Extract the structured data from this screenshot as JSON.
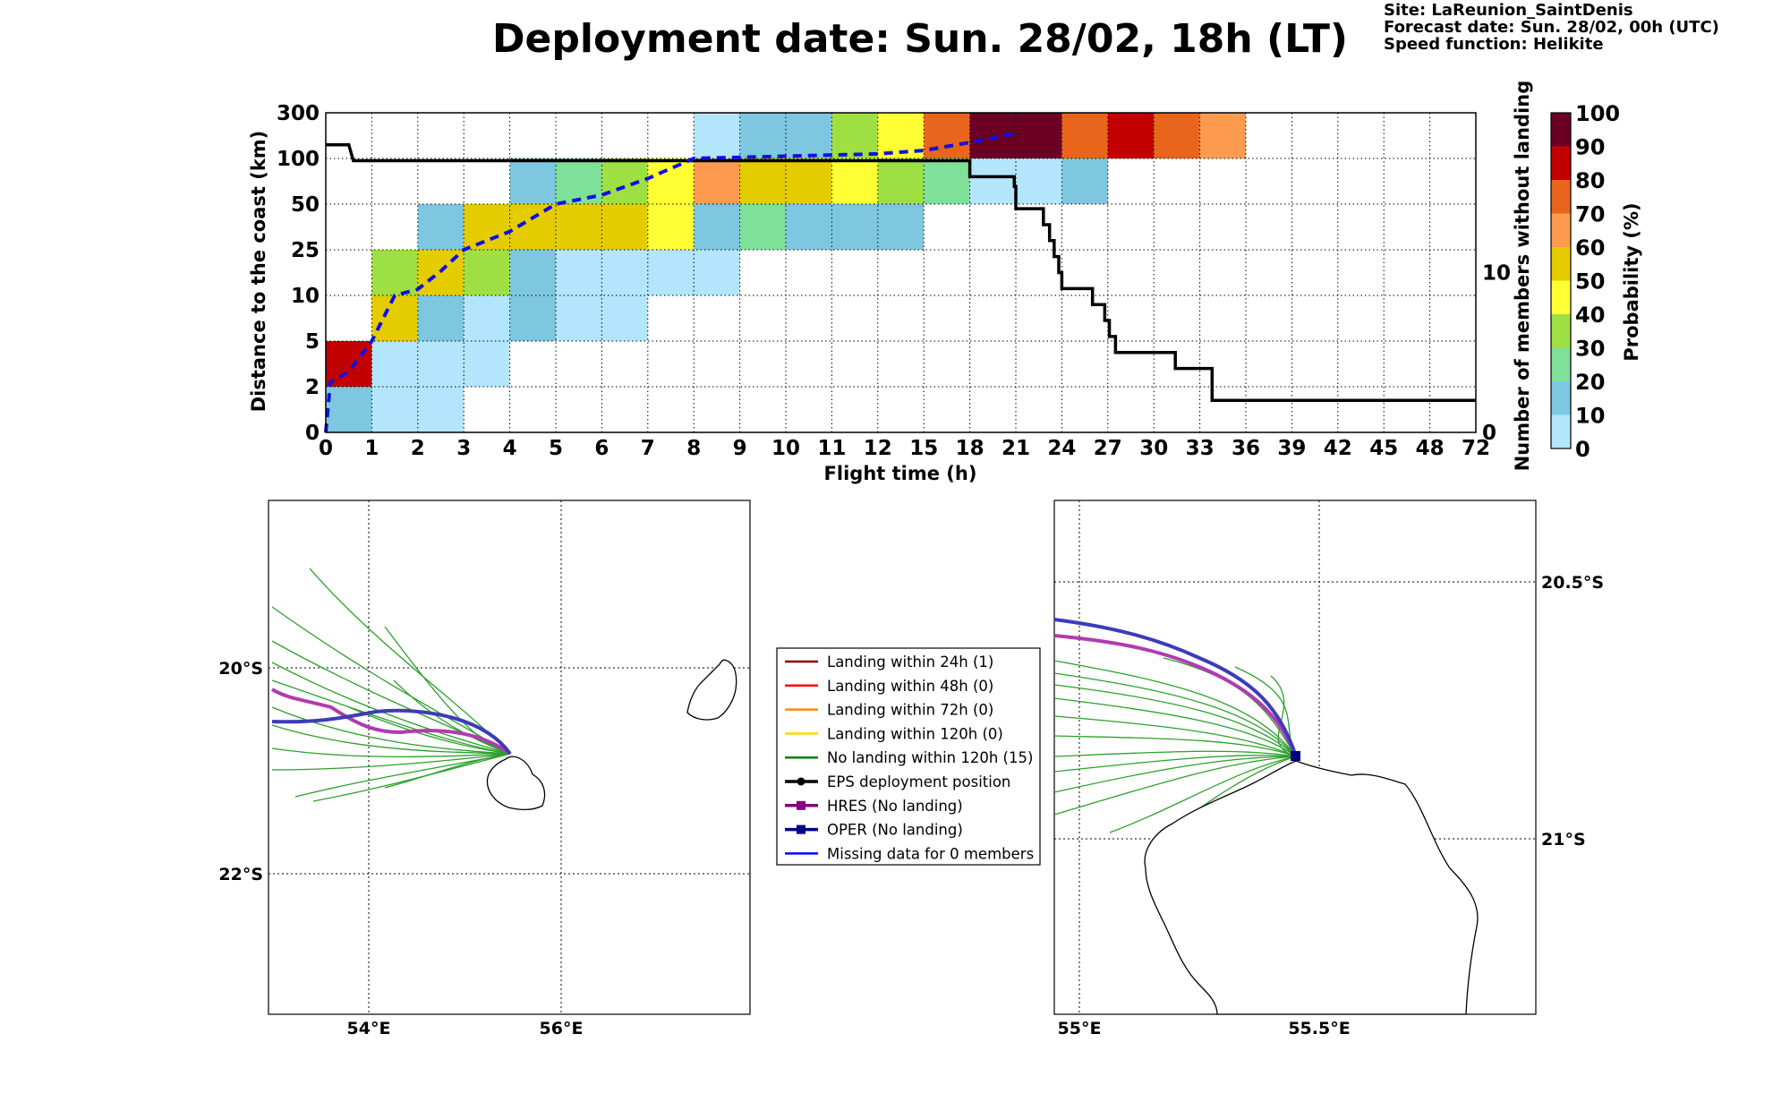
{
  "title": "Deployment date: Sun. 28/02, 18h (LT)",
  "meta": {
    "site": "Site: LaReunion_SaintDenis",
    "forecast": "Forecast date: Sun. 28/02, 00h (UTC)",
    "speed": "Speed function: Helikite"
  },
  "chart_data": [
    {
      "type": "heatmap",
      "xlabel": "Flight time (h)",
      "ylabel": "Distance to the coast (km)",
      "y2label": "Number of members without landing",
      "x_ticks": [
        "0",
        "1",
        "2",
        "3",
        "4",
        "5",
        "6",
        "7",
        "8",
        "9",
        "10",
        "11",
        "12",
        "15",
        "18",
        "21",
        "24",
        "27",
        "30",
        "33",
        "36",
        "39",
        "42",
        "45",
        "48",
        "72"
      ],
      "y_ticks": [
        "0",
        "2",
        "5",
        "10",
        "25",
        "50",
        "100",
        "300"
      ],
      "y2_ticks": [
        "0",
        "10"
      ],
      "y2lim": [
        0,
        20
      ],
      "colorbar": {
        "label": "Probability (%)",
        "ticks": [
          "0",
          "10",
          "20",
          "30",
          "40",
          "50",
          "60",
          "70",
          "80",
          "90",
          "100"
        ],
        "colors": [
          "#b3e5fc",
          "#7ec7e1",
          "#7fe09a",
          "#9ee042",
          "#ffff33",
          "#e5cc00",
          "#ff9b4f",
          "#e8651b",
          "#c30000",
          "#6b0024"
        ]
      },
      "cells": [
        {
          "x": "0-1",
          "y": "0-2",
          "p": 15
        },
        {
          "x": "1-3",
          "y": "0-2",
          "p": 5
        },
        {
          "x": "0-1",
          "y": "2-5",
          "p": 85
        },
        {
          "x": "1-4",
          "y": "2-5",
          "p": 5
        },
        {
          "x": "1-2",
          "y": "5-10",
          "p": 55
        },
        {
          "x": "2-3",
          "y": "5-10",
          "p": 15
        },
        {
          "x": "3-4",
          "y": "5-10",
          "p": 5
        },
        {
          "x": "4-5",
          "y": "5-10",
          "p": 15
        },
        {
          "x": "5-7",
          "y": "5-10",
          "p": 5
        },
        {
          "x": "1-2",
          "y": "10-25",
          "p": 35
        },
        {
          "x": "2-3",
          "y": "10-25",
          "p": 55
        },
        {
          "x": "3-4",
          "y": "10-25",
          "p": 35
        },
        {
          "x": "4-5",
          "y": "10-25",
          "p": 15
        },
        {
          "x": "5-9",
          "y": "10-25",
          "p": 5
        },
        {
          "x": "2-3",
          "y": "25-50",
          "p": 15
        },
        {
          "x": "3-7",
          "y": "25-50",
          "p": 55
        },
        {
          "x": "7-8",
          "y": "25-50",
          "p": 45
        },
        {
          "x": "8-9",
          "y": "25-50",
          "p": 15
        },
        {
          "x": "9-10",
          "y": "25-50",
          "p": 25
        },
        {
          "x": "10-15",
          "y": "25-50",
          "p": 15
        },
        {
          "x": "4-5",
          "y": "50-100",
          "p": 15
        },
        {
          "x": "5-6",
          "y": "50-100",
          "p": 25
        },
        {
          "x": "6-7",
          "y": "50-100",
          "p": 35
        },
        {
          "x": "7-8",
          "y": "50-100",
          "p": 45
        },
        {
          "x": "8-9",
          "y": "50-100",
          "p": 65
        },
        {
          "x": "9-11",
          "y": "50-100",
          "p": 55
        },
        {
          "x": "11-12",
          "y": "50-100",
          "p": 45
        },
        {
          "x": "12-15",
          "y": "50-100",
          "p": 35
        },
        {
          "x": "15-18",
          "y": "50-100",
          "p": 25
        },
        {
          "x": "18-24",
          "y": "50-100",
          "p": 5
        },
        {
          "x": "24-27",
          "y": "50-100",
          "p": 15
        },
        {
          "x": "8-9",
          "y": "100-300",
          "p": 5
        },
        {
          "x": "9-11",
          "y": "100-300",
          "p": 15
        },
        {
          "x": "11-12",
          "y": "100-300",
          "p": 35
        },
        {
          "x": "12-15",
          "y": "100-300",
          "p": 45
        },
        {
          "x": "15-18",
          "y": "100-300",
          "p": 75
        },
        {
          "x": "18-24",
          "y": "100-300",
          "p": 95
        },
        {
          "x": "24-27",
          "y": "100-300",
          "p": 75
        },
        {
          "x": "27-30",
          "y": "100-300",
          "p": 85
        },
        {
          "x": "30-33",
          "y": "100-300",
          "p": 75
        },
        {
          "x": "33-36",
          "y": "100-300",
          "p": 65
        }
      ],
      "mean_distance_dashed": [
        {
          "t": 0,
          "d": 0
        },
        {
          "t": 0.1,
          "d": 2.3
        },
        {
          "t": 0.5,
          "d": 3
        },
        {
          "t": 1,
          "d": 5
        },
        {
          "t": 1.2,
          "d": 7
        },
        {
          "t": 1.5,
          "d": 10
        },
        {
          "t": 2,
          "d": 12
        },
        {
          "t": 2.5,
          "d": 18
        },
        {
          "t": 3,
          "d": 25
        },
        {
          "t": 4,
          "d": 35
        },
        {
          "t": 5,
          "d": 50
        },
        {
          "t": 6,
          "d": 60
        },
        {
          "t": 7,
          "d": 78
        },
        {
          "t": 8,
          "d": 100
        },
        {
          "t": 9,
          "d": 105
        },
        {
          "t": 10,
          "d": 110
        },
        {
          "t": 11,
          "d": 115
        },
        {
          "t": 12,
          "d": 120
        },
        {
          "t": 15,
          "d": 135
        },
        {
          "t": 18,
          "d": 170
        },
        {
          "t": 21,
          "d": 210
        }
      ],
      "members_without_landing": [
        {
          "t": 0,
          "n": 18
        },
        {
          "t": 0.5,
          "n": 18
        },
        {
          "t": 0.6,
          "n": 17
        },
        {
          "t": 18,
          "n": 17
        },
        {
          "t": 18,
          "n": 16
        },
        {
          "t": 20.9,
          "n": 16
        },
        {
          "t": 20.9,
          "n": 15.4
        },
        {
          "t": 21,
          "n": 15.4
        },
        {
          "t": 21,
          "n": 14
        },
        {
          "t": 22.8,
          "n": 14
        },
        {
          "t": 22.8,
          "n": 13
        },
        {
          "t": 23.2,
          "n": 13
        },
        {
          "t": 23.2,
          "n": 12
        },
        {
          "t": 23.5,
          "n": 12
        },
        {
          "t": 23.5,
          "n": 11
        },
        {
          "t": 23.8,
          "n": 11
        },
        {
          "t": 23.8,
          "n": 10
        },
        {
          "t": 24,
          "n": 10
        },
        {
          "t": 24,
          "n": 9
        },
        {
          "t": 26,
          "n": 9
        },
        {
          "t": 26,
          "n": 8
        },
        {
          "t": 26.8,
          "n": 8
        },
        {
          "t": 26.8,
          "n": 7
        },
        {
          "t": 27.1,
          "n": 7
        },
        {
          "t": 27.1,
          "n": 6
        },
        {
          "t": 27.5,
          "n": 6
        },
        {
          "t": 27.5,
          "n": 5
        },
        {
          "t": 31.4,
          "n": 5
        },
        {
          "t": 31.4,
          "n": 4
        },
        {
          "t": 33.8,
          "n": 4
        },
        {
          "t": 33.8,
          "n": 2
        },
        {
          "t": 72,
          "n": 2
        }
      ]
    }
  ],
  "legend": [
    {
      "label": "Landing within 24h (1)",
      "color": "#8b0000",
      "marker": "none"
    },
    {
      "label": "Landing within 48h (0)",
      "color": "#ff0000",
      "marker": "none"
    },
    {
      "label": "Landing within 72h (0)",
      "color": "#ff8c00",
      "marker": "none"
    },
    {
      "label": "Landing within 120h (0)",
      "color": "#ffd700",
      "marker": "none"
    },
    {
      "label": "No landing within 120h (15)",
      "color": "#008000",
      "marker": "none"
    },
    {
      "label": "EPS deployment position",
      "color": "#000000",
      "marker": "circle"
    },
    {
      "label": "HRES (No landing)",
      "color": "#800080",
      "marker": "square"
    },
    {
      "label": "OPER (No landing)",
      "color": "#000080",
      "marker": "square"
    },
    {
      "label": "Missing data for 0 members",
      "color": "#0000ff",
      "marker": "none"
    }
  ],
  "maps": {
    "left": {
      "x_ticks": [
        "54°E",
        "56°E"
      ],
      "y_ticks": [
        "20°S",
        "22°S"
      ]
    },
    "right": {
      "x_ticks": [
        "55°E",
        "55.5°E"
      ],
      "y_ticks": [
        "20.5°S",
        "21°S"
      ]
    }
  }
}
